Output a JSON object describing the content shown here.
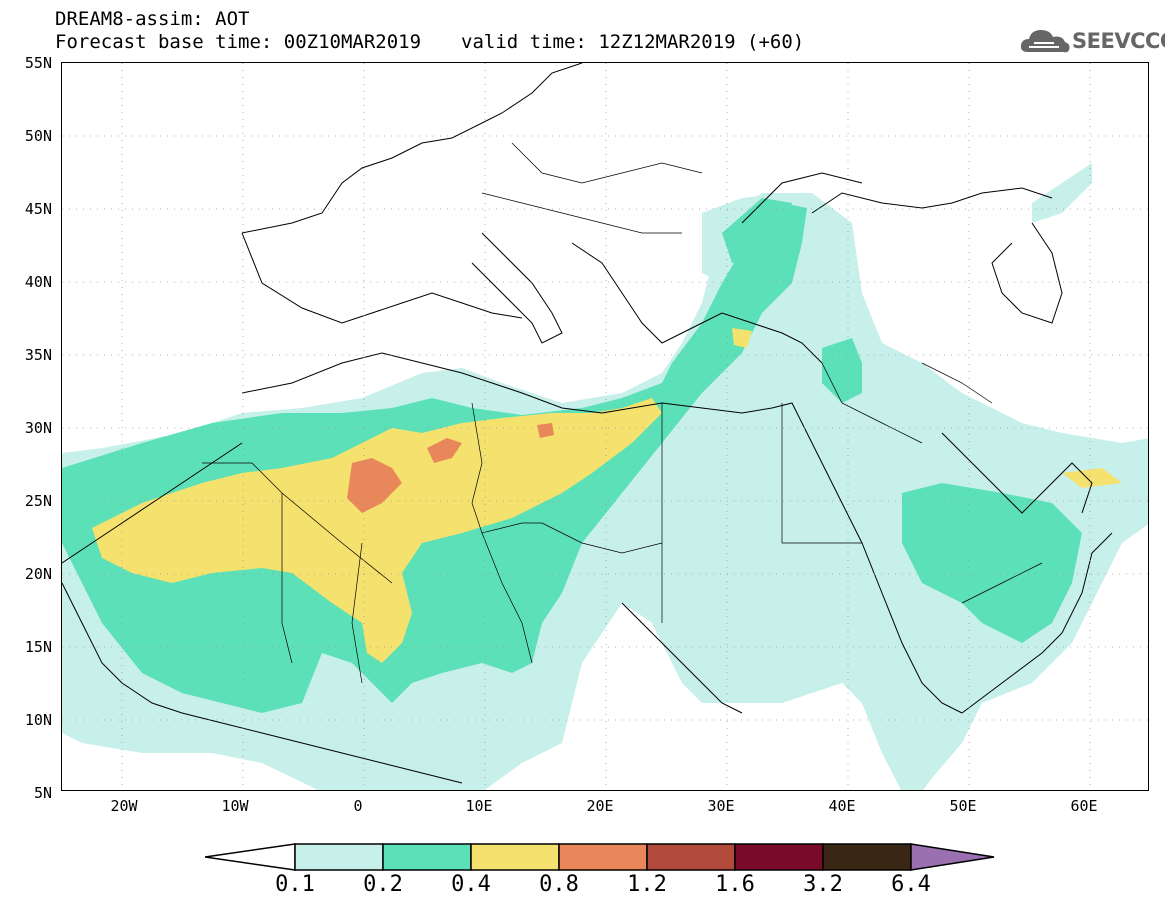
{
  "header": {
    "model": "DREAM8-assim: AOT",
    "base_time": "Forecast base time: 00Z10MAR2019",
    "valid_time": "valid time: 12Z12MAR2019 (+60)",
    "logo_text": "SEEVCCC"
  },
  "map": {
    "lon_range": [
      -25,
      65
    ],
    "lat_range": [
      5,
      55
    ],
    "lat_labels": [
      "55N",
      "50N",
      "45N",
      "40N",
      "35N",
      "30N",
      "25N",
      "20N",
      "15N",
      "10N",
      "5N"
    ],
    "lon_labels": [
      "20W",
      "10W",
      "0",
      "10E",
      "20E",
      "30E",
      "40E",
      "50E",
      "60E"
    ]
  },
  "legend": {
    "levels": [
      "0.1",
      "0.2",
      "0.4",
      "0.8",
      "1.2",
      "1.6",
      "3.2",
      "6.4"
    ],
    "colors": [
      "#c8f0ea",
      "#5ce0b8",
      "#f5e26e",
      "#e8875a",
      "#b04a3a",
      "#7a0a2a",
      "#3a2614",
      "#9a70b0"
    ]
  }
}
